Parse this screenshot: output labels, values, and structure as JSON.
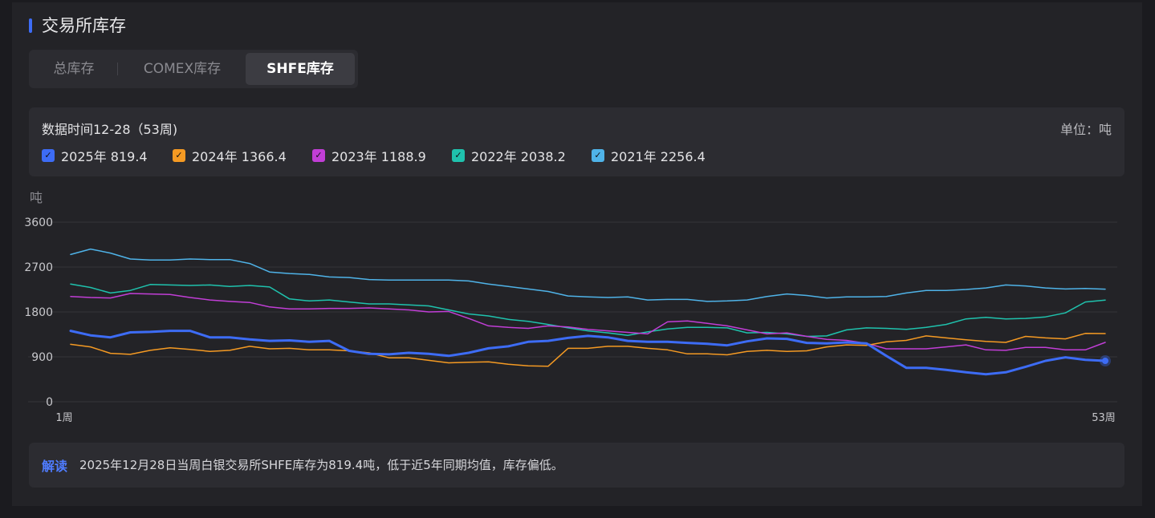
{
  "header": {
    "title": "交易所库存"
  },
  "tabs": [
    {
      "label": "总库存",
      "active": false
    },
    {
      "label": "COMEX库存",
      "active": false
    },
    {
      "label": "SHFE库存",
      "active": true
    }
  ],
  "meta": {
    "date_label": "数据时间12-28（53周)",
    "unit_label": "单位：吨"
  },
  "legend": [
    {
      "label": "2025年 819.4",
      "color": "#3d6cf5",
      "checked": true
    },
    {
      "label": "2024年 1366.4",
      "color": "#f59a23",
      "checked": true
    },
    {
      "label": "2023年 1188.9",
      "color": "#c13ed6",
      "checked": true
    },
    {
      "label": "2022年 2038.2",
      "color": "#1fc2ad",
      "checked": true
    },
    {
      "label": "2021年 2256.4",
      "color": "#4fb3e8",
      "checked": true
    }
  ],
  "note": {
    "tag": "解读",
    "text": "2025年12月28日当周白银交易所SHFE库存为819.4吨，低于近5年同期均值，库存偏低。"
  },
  "chart_data": {
    "type": "line",
    "ylabel": "吨",
    "ylim": [
      0,
      3600
    ],
    "yticks": [
      0,
      900,
      1800,
      2700,
      3600
    ],
    "ytick_labels": [
      "0",
      "900",
      "1800",
      "2700",
      "3600"
    ],
    "x_start_label": "1周",
    "x_end_label": "53周",
    "grid": true,
    "series": [
      {
        "name": "2025年",
        "color": "#3d6cf5",
        "values": [
          1420,
          1330,
          1290,
          1390,
          1400,
          1420,
          1420,
          1290,
          1290,
          1250,
          1220,
          1230,
          1200,
          1220,
          1020,
          960,
          950,
          980,
          960,
          920,
          980,
          1070,
          1110,
          1200,
          1220,
          1280,
          1320,
          1290,
          1220,
          1200,
          1200,
          1180,
          1160,
          1130,
          1210,
          1270,
          1260,
          1180,
          1170,
          1190,
          1170,
          920,
          680,
          680,
          640,
          590,
          550,
          590,
          700,
          820,
          890,
          840,
          819.4
        ],
        "highlight_last": true
      },
      {
        "name": "2024年",
        "color": "#f59a23",
        "values": [
          1150,
          1100,
          970,
          950,
          1030,
          1080,
          1050,
          1010,
          1030,
          1110,
          1060,
          1070,
          1040,
          1040,
          1020,
          980,
          880,
          880,
          830,
          780,
          790,
          800,
          750,
          720,
          710,
          1070,
          1070,
          1110,
          1110,
          1070,
          1040,
          960,
          960,
          940,
          1010,
          1030,
          1010,
          1020,
          1100,
          1140,
          1130,
          1200,
          1230,
          1320,
          1280,
          1240,
          1210,
          1190,
          1310,
          1280,
          1260,
          1370,
          1366.4
        ]
      },
      {
        "name": "2023年",
        "color": "#c13ed6",
        "values": [
          2110,
          2090,
          2080,
          2170,
          2160,
          2150,
          2090,
          2040,
          2010,
          1990,
          1900,
          1860,
          1860,
          1870,
          1870,
          1880,
          1860,
          1840,
          1800,
          1810,
          1670,
          1520,
          1490,
          1470,
          1520,
          1500,
          1450,
          1420,
          1390,
          1360,
          1600,
          1620,
          1570,
          1520,
          1440,
          1360,
          1380,
          1310,
          1250,
          1230,
          1170,
          1060,
          1060,
          1060,
          1100,
          1140,
          1040,
          1030,
          1090,
          1090,
          1040,
          1040,
          1188.9
        ]
      },
      {
        "name": "2022年",
        "color": "#1fc2ad",
        "values": [
          2360,
          2290,
          2180,
          2230,
          2350,
          2340,
          2330,
          2340,
          2310,
          2330,
          2300,
          2060,
          2020,
          2040,
          2000,
          1960,
          1960,
          1940,
          1920,
          1840,
          1760,
          1720,
          1650,
          1610,
          1550,
          1480,
          1420,
          1380,
          1330,
          1400,
          1460,
          1490,
          1490,
          1480,
          1380,
          1390,
          1360,
          1310,
          1320,
          1440,
          1480,
          1470,
          1450,
          1490,
          1550,
          1660,
          1690,
          1660,
          1670,
          1700,
          1780,
          2000,
          2038.2
        ]
      },
      {
        "name": "2021年",
        "color": "#4fb3e8",
        "values": [
          2950,
          3060,
          2980,
          2860,
          2840,
          2840,
          2860,
          2850,
          2850,
          2770,
          2600,
          2570,
          2550,
          2500,
          2490,
          2450,
          2440,
          2440,
          2440,
          2440,
          2420,
          2360,
          2310,
          2260,
          2210,
          2120,
          2100,
          2090,
          2100,
          2040,
          2050,
          2050,
          2010,
          2020,
          2040,
          2110,
          2160,
          2130,
          2080,
          2100,
          2100,
          2110,
          2180,
          2230,
          2230,
          2250,
          2280,
          2340,
          2320,
          2280,
          2260,
          2270,
          2256.4
        ]
      }
    ]
  }
}
